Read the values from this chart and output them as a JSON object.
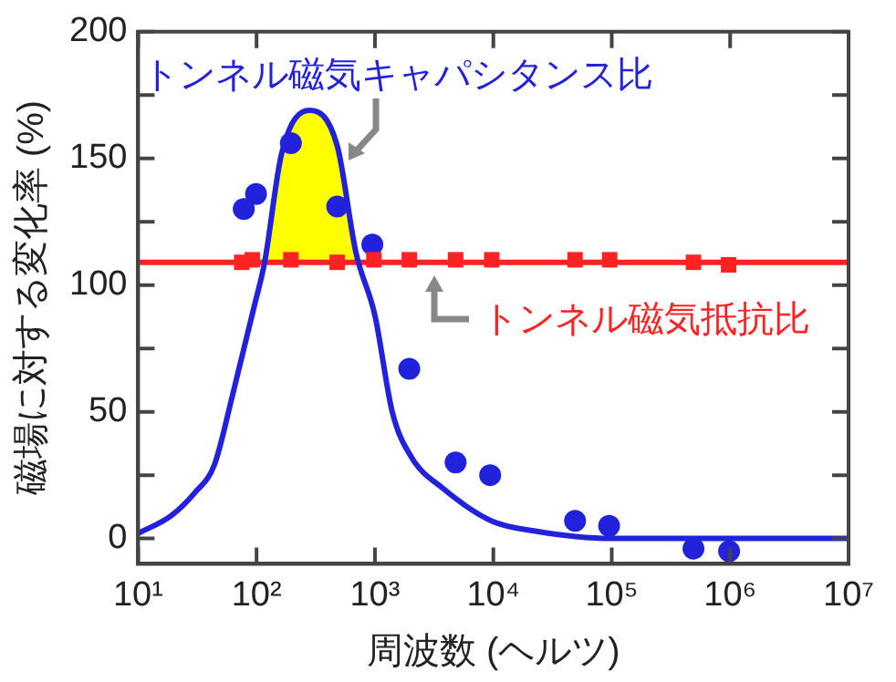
{
  "chart_data": {
    "type": "line",
    "xlabel": "周波数 (ヘルツ)",
    "ylabel": "磁場に対する変化率 (%)",
    "log": "x",
    "grid": false,
    "legend": false,
    "xlim": [
      10,
      10000000
    ],
    "xticks": [
      {
        "value": 10,
        "label": "10¹"
      },
      {
        "value": 100,
        "label": "10²"
      },
      {
        "value": 1000,
        "label": "10³"
      },
      {
        "value": 10000,
        "label": "10⁴"
      },
      {
        "value": 100000,
        "label": "10⁵"
      },
      {
        "value": 1000000,
        "label": "10⁶"
      },
      {
        "value": 10000000,
        "label": "10⁷"
      }
    ],
    "ylim": [
      -10,
      200
    ],
    "yticks": [
      0,
      {
        "value": 25,
        "label": null
      },
      50,
      {
        "value": 75,
        "label": null
      },
      100,
      {
        "value": 125,
        "label": null
      },
      150,
      {
        "value": 175,
        "label": null
      },
      200
    ],
    "ref_lines": [
      {
        "axis": "y",
        "value": 109,
        "label": "トンネル磁気抵抗比",
        "color": "#ff2222"
      }
    ],
    "series": [
      {
        "type": "area",
        "color": "#ffff00",
        "x": [
          117,
          163,
          280,
          480,
          690,
          720
        ],
        "values": [
          109,
          152,
          169,
          155,
          113,
          109
        ]
      },
      {
        "type": "line",
        "name": "トンネル磁気キャパシタンス比",
        "color": "#2222dd",
        "marker": "none",
        "x": [
          10,
          19,
          30,
          44,
          63,
          96,
          117,
          163,
          280,
          480,
          690,
          1000,
          1400,
          2040,
          3700,
          9600,
          22000,
          100000,
          10000000
        ],
        "values": [
          2,
          9,
          18,
          29,
          57,
          92,
          109,
          152,
          169,
          155,
          113,
          88,
          50,
          32,
          20,
          7,
          3,
          0,
          0
        ]
      },
      {
        "type": "scatter",
        "color": "#2222dd",
        "marker": "circle",
        "x": [
          78,
          99,
          195,
          480,
          950,
          1950,
          4800,
          9400,
          49000,
          95000,
          490000,
          980000
        ],
        "values": [
          130,
          136,
          156,
          131,
          116,
          67,
          30,
          25,
          7,
          5,
          -4,
          -5
        ]
      },
      {
        "type": "scatter",
        "color": "#ff2222",
        "marker": "square",
        "x": [
          75,
          92,
          195,
          480,
          980,
          1950,
          4800,
          9700,
          49000,
          96000,
          490000,
          970000
        ],
        "values": [
          109,
          110,
          110,
          109,
          110,
          110,
          110,
          110,
          110,
          110,
          109,
          108
        ]
      }
    ]
  }
}
